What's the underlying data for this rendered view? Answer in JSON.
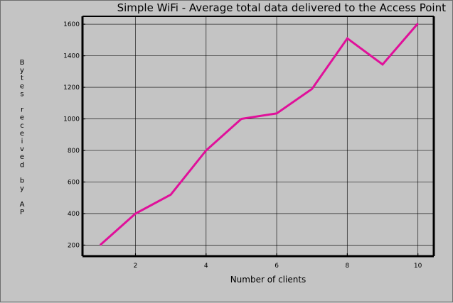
{
  "chart_data": {
    "type": "line",
    "title": "Simple WiFi - Average total data delivered to the Access Point",
    "xlabel": "Number of clients",
    "ylabel": "Bytes received by AP",
    "xlim": [
      0.5,
      10.45
    ],
    "ylim": [
      130,
      1650
    ],
    "xticks": [
      2,
      4,
      6,
      8,
      10
    ],
    "yticks": [
      200,
      400,
      600,
      800,
      1000,
      1200,
      1400,
      1600
    ],
    "grid": true,
    "legend": "none",
    "series": [
      {
        "color": "#e0109a",
        "x": [
          1,
          2,
          3,
          4,
          5,
          6,
          7,
          8,
          9,
          10
        ],
        "y": [
          200,
          400,
          520,
          800,
          1000,
          1035,
          1190,
          1510,
          1345,
          1605
        ]
      }
    ]
  },
  "colors": {
    "background": "#c4c4c4",
    "grid": "#000000",
    "series": "#e0109a"
  }
}
